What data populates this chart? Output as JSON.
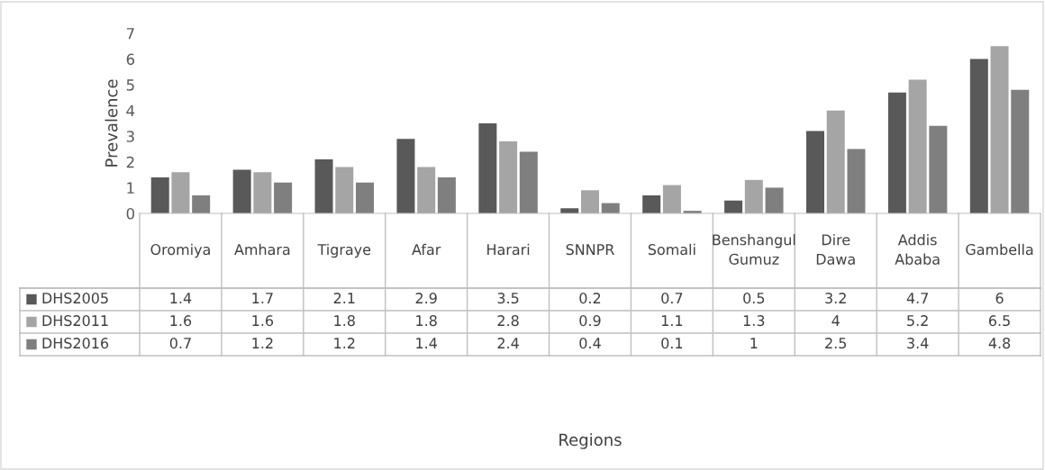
{
  "chart_data": {
    "type": "bar",
    "annotations": [
      "Regions"
    ],
    "ylabel": "Prevalence",
    "categories": [
      "Oromiya",
      "Amhara",
      "Tigraye",
      "Afar",
      "Harari",
      "SNNPR",
      "Somali",
      "Benshangul Gumuz",
      "Dire Dawa",
      "Addis Ababa",
      "Gambella"
    ],
    "series": [
      {
        "name": "DHS2005",
        "color": "#595959",
        "values": [
          1.4,
          1.7,
          2.1,
          2.9,
          3.5,
          0.2,
          0.7,
          0.5,
          3.2,
          4.7,
          6
        ]
      },
      {
        "name": "DHS2011",
        "color": "#a5a5a5",
        "values": [
          1.6,
          1.6,
          1.8,
          1.8,
          2.8,
          0.9,
          1.1,
          1.3,
          4,
          5.2,
          6.5
        ]
      },
      {
        "name": "DHS2016",
        "color": "#7f7f7f",
        "values": [
          0.7,
          1.2,
          1.2,
          1.4,
          2.4,
          0.4,
          0.1,
          1,
          2.5,
          3.4,
          4.8
        ]
      }
    ],
    "ylim": [
      0,
      7
    ],
    "yticks": [
      0,
      1,
      2,
      3,
      4,
      5,
      6,
      7
    ],
    "grid": false,
    "legend": "bottom",
    "data_labels": true
  }
}
